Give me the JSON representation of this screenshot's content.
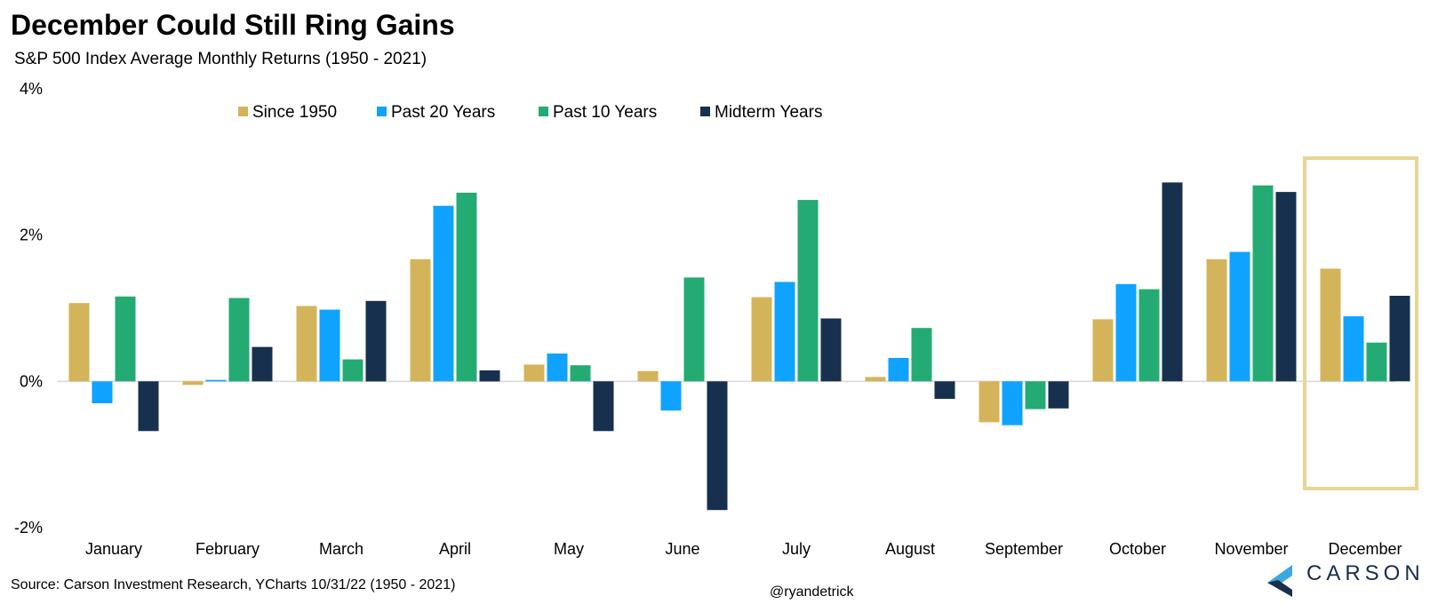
{
  "chart_data": {
    "type": "bar",
    "title": "December Could Still Ring Gains",
    "subtitle": "S&P 500 Index Average Monthly Returns (1950 - 2021)",
    "categories": [
      "January",
      "February",
      "March",
      "April",
      "May",
      "June",
      "July",
      "August",
      "September",
      "October",
      "November",
      "December"
    ],
    "series": [
      {
        "name": "Since 1950",
        "color": "#d4b45a",
        "values": [
          1.07,
          -0.05,
          1.03,
          1.67,
          0.23,
          0.14,
          1.15,
          0.06,
          -0.56,
          0.85,
          1.67,
          1.54
        ]
      },
      {
        "name": "Past 20 Years",
        "color": "#0fa3ff",
        "values": [
          -0.3,
          0.02,
          0.98,
          2.4,
          0.38,
          -0.4,
          1.36,
          0.32,
          -0.6,
          1.33,
          1.77,
          0.89
        ]
      },
      {
        "name": "Past 10 Years",
        "color": "#24ab73",
        "values": [
          1.16,
          1.14,
          0.3,
          2.58,
          0.22,
          1.42,
          2.48,
          0.73,
          -0.38,
          1.26,
          2.68,
          0.53
        ]
      },
      {
        "name": "Midterm Years",
        "color": "#17304d",
        "values": [
          -0.68,
          0.47,
          1.1,
          0.15,
          -0.68,
          -1.76,
          0.86,
          -0.24,
          -0.37,
          2.72,
          2.59,
          1.17
        ]
      }
    ],
    "ylim": [
      -2,
      4
    ],
    "yticks": [
      -2,
      0,
      2,
      4
    ],
    "ytick_labels": [
      "-2%",
      "0%",
      "2%",
      "4%"
    ],
    "xlabel": "",
    "ylabel": "",
    "grid": false,
    "legend_position": "top",
    "highlight_category": "December",
    "highlight_color": "#e8d592",
    "source": "Source: Carson Investment Research, YCharts 10/31/22 (1950 - 2021)",
    "handle": "@ryandetrick"
  },
  "brand": {
    "name": "CARSON",
    "color": "#1b2d49",
    "accent": "#3da8e0"
  }
}
